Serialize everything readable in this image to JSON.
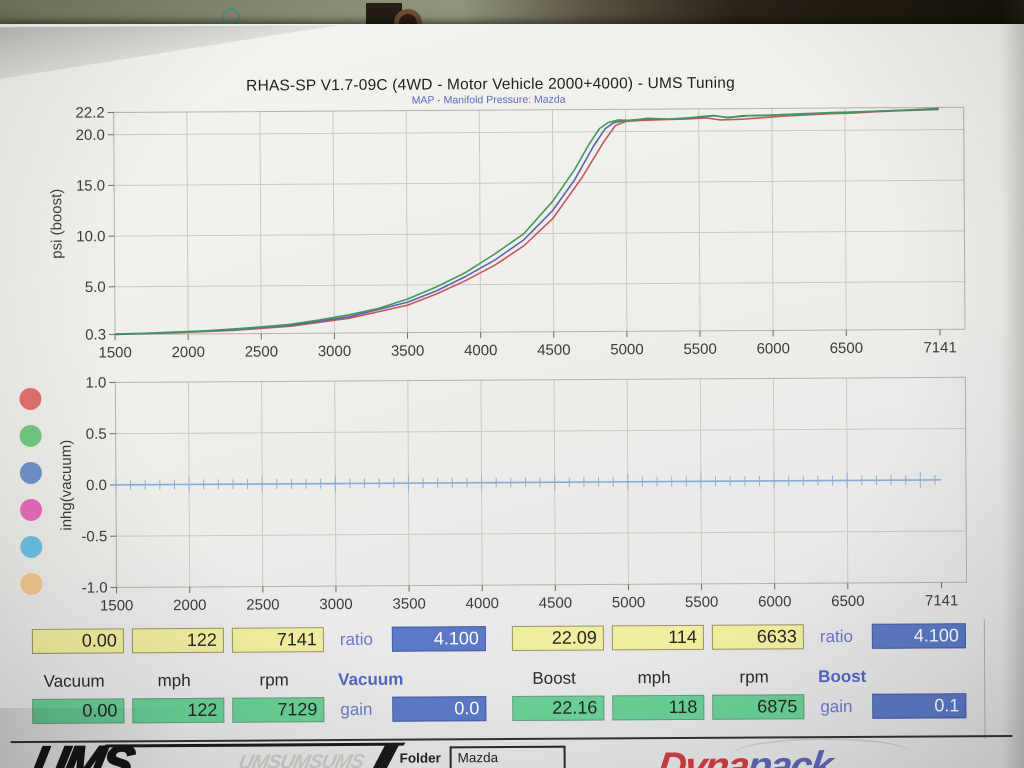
{
  "header": {
    "title": "RHAS-SP V1.7-09C (4WD - Motor Vehicle 2000+4000) - UMS Tuning",
    "subtitle": "MAP - Manifold Pressure: Mazda"
  },
  "colors": {
    "grid": "#c9c8c2",
    "border": "#b2b1ab",
    "tick_text": "#3c3c3a",
    "accent_blue": "#5565c0",
    "box_yellow": "#f1ee9f",
    "box_green": "#69d197",
    "box_blue": "#5b79c6",
    "dyna_red": "#ce3e44",
    "dyna_blue": "#5e66b2"
  },
  "legend_dots": [
    {
      "name": "red",
      "color": "#e2706d"
    },
    {
      "name": "green",
      "color": "#72ca82"
    },
    {
      "name": "blue",
      "color": "#6f93cb"
    },
    {
      "name": "pink",
      "color": "#e86cba"
    },
    {
      "name": "cyan",
      "color": "#6cc2e4"
    },
    {
      "name": "orange",
      "color": "#f3c98e"
    }
  ],
  "chart_data": [
    {
      "type": "line",
      "ylabel": "psi (boost)",
      "xlim": [
        1500,
        7312
      ],
      "ylim": [
        0.3,
        22.2
      ],
      "xticks": [
        {
          "v": 1500,
          "label": "1500"
        },
        {
          "v": 2000,
          "label": "2000"
        },
        {
          "v": 2500,
          "label": "2500"
        },
        {
          "v": 3000,
          "label": "3000"
        },
        {
          "v": 3500,
          "label": "3500"
        },
        {
          "v": 4000,
          "label": "4000"
        },
        {
          "v": 4500,
          "label": "4500"
        },
        {
          "v": 5000,
          "label": "5000"
        },
        {
          "v": 5500,
          "label": "5500"
        },
        {
          "v": 6000,
          "label": "6000"
        },
        {
          "v": 6500,
          "label": "6500"
        },
        {
          "v": 7141,
          "label": "7141"
        }
      ],
      "yticks": [
        {
          "v": 22.2,
          "label": "22.2"
        },
        {
          "v": 20,
          "label": "20.0"
        },
        {
          "v": 15,
          "label": "15.0"
        },
        {
          "v": 10,
          "label": "10.0"
        },
        {
          "v": 5,
          "label": "5.0"
        },
        {
          "v": 0.3,
          "label": "0.3"
        }
      ],
      "grid_xticks": [
        2000,
        2500,
        3000,
        3500,
        4000,
        4500,
        5000,
        5500,
        6000,
        6500
      ],
      "grid_yticks": [
        20,
        15,
        10,
        5
      ],
      "grid": true,
      "series": [
        {
          "name": "run-red",
          "color": "#c4595c",
          "points": [
            [
              1500,
              0.3
            ],
            [
              1900,
              0.42
            ],
            [
              2300,
              0.62
            ],
            [
              2700,
              1.0
            ],
            [
              3100,
              1.75
            ],
            [
              3500,
              3.0
            ],
            [
              3700,
              4.1
            ],
            [
              3900,
              5.4
            ],
            [
              4100,
              6.9
            ],
            [
              4300,
              8.8
            ],
            [
              4500,
              11.5
            ],
            [
              4700,
              15.5
            ],
            [
              4850,
              19.0
            ],
            [
              4930,
              20.6
            ],
            [
              5000,
              21.0
            ],
            [
              5100,
              21.1
            ],
            [
              5250,
              21.15
            ],
            [
              5400,
              21.2
            ],
            [
              5550,
              21.3
            ],
            [
              5650,
              21.1
            ],
            [
              5800,
              21.15
            ],
            [
              5950,
              21.3
            ],
            [
              6100,
              21.45
            ],
            [
              6250,
              21.55
            ],
            [
              6400,
              21.65
            ],
            [
              6550,
              21.7
            ],
            [
              6700,
              21.8
            ],
            [
              6900,
              21.9
            ],
            [
              7050,
              21.95
            ],
            [
              7141,
              22.0
            ]
          ]
        },
        {
          "name": "run-blue",
          "color": "#5a66b4",
          "points": [
            [
              1500,
              0.3
            ],
            [
              1900,
              0.45
            ],
            [
              2300,
              0.68
            ],
            [
              2700,
              1.1
            ],
            [
              3100,
              1.9
            ],
            [
              3500,
              3.3
            ],
            [
              3700,
              4.4
            ],
            [
              3900,
              5.8
            ],
            [
              4100,
              7.4
            ],
            [
              4300,
              9.4
            ],
            [
              4500,
              12.3
            ],
            [
              4650,
              15.3
            ],
            [
              4780,
              18.6
            ],
            [
              4860,
              20.3
            ],
            [
              4920,
              20.9
            ],
            [
              5000,
              21.1
            ],
            [
              5150,
              21.25
            ],
            [
              5300,
              21.2
            ],
            [
              5450,
              21.3
            ],
            [
              5600,
              21.5
            ],
            [
              5700,
              21.35
            ],
            [
              5850,
              21.5
            ],
            [
              6000,
              21.55
            ],
            [
              6200,
              21.65
            ],
            [
              6400,
              21.75
            ],
            [
              6600,
              21.8
            ],
            [
              6800,
              21.9
            ],
            [
              7000,
              22.0
            ],
            [
              7141,
              22.1
            ]
          ]
        },
        {
          "name": "run-green",
          "color": "#419a58",
          "points": [
            [
              1500,
              0.35
            ],
            [
              1700,
              0.4
            ],
            [
              1900,
              0.5
            ],
            [
              2100,
              0.6
            ],
            [
              2300,
              0.75
            ],
            [
              2500,
              0.95
            ],
            [
              2700,
              1.2
            ],
            [
              2900,
              1.6
            ],
            [
              3100,
              2.1
            ],
            [
              3300,
              2.7
            ],
            [
              3500,
              3.6
            ],
            [
              3700,
              4.8
            ],
            [
              3900,
              6.2
            ],
            [
              4100,
              8.0
            ],
            [
              4300,
              10.0
            ],
            [
              4500,
              13.2
            ],
            [
              4650,
              16.3
            ],
            [
              4750,
              18.8
            ],
            [
              4820,
              20.3
            ],
            [
              4880,
              20.9
            ],
            [
              4950,
              21.15
            ],
            [
              5050,
              21.1
            ],
            [
              5150,
              21.3
            ],
            [
              5300,
              21.2
            ],
            [
              5450,
              21.35
            ],
            [
              5600,
              21.55
            ],
            [
              5700,
              21.3
            ],
            [
              5800,
              21.5
            ],
            [
              5950,
              21.5
            ],
            [
              6100,
              21.6
            ],
            [
              6250,
              21.6
            ],
            [
              6400,
              21.75
            ],
            [
              6550,
              21.8
            ],
            [
              6700,
              21.85
            ],
            [
              6850,
              21.9
            ],
            [
              7000,
              22.0
            ],
            [
              7141,
              22.0
            ]
          ]
        }
      ]
    },
    {
      "type": "line",
      "ylabel": "inhg(vacuum)",
      "xlim": [
        1500,
        7312
      ],
      "ylim": [
        -1.0,
        1.0
      ],
      "xticks": [
        {
          "v": 1500,
          "label": "1500"
        },
        {
          "v": 2000,
          "label": "2000"
        },
        {
          "v": 2500,
          "label": "2500"
        },
        {
          "v": 3000,
          "label": "3000"
        },
        {
          "v": 3500,
          "label": "3500"
        },
        {
          "v": 4000,
          "label": "4000"
        },
        {
          "v": 4500,
          "label": "4500"
        },
        {
          "v": 5000,
          "label": "5000"
        },
        {
          "v": 5500,
          "label": "5500"
        },
        {
          "v": 6000,
          "label": "6000"
        },
        {
          "v": 6500,
          "label": "6500"
        },
        {
          "v": 7141,
          "label": "7141"
        }
      ],
      "yticks": [
        {
          "v": 1.0,
          "label": "1.0"
        },
        {
          "v": 0.5,
          "label": "0.5"
        },
        {
          "v": 0.0,
          "label": "0.0"
        },
        {
          "v": -0.5,
          "label": "-0.5"
        },
        {
          "v": -1.0,
          "label": "-1.0"
        }
      ],
      "grid_xticks": [
        2000,
        2500,
        3000,
        3500,
        4000,
        4500,
        5000,
        5500,
        6000,
        6500
      ],
      "grid_yticks": [
        0.5,
        -0.5
      ],
      "grid": true,
      "sample_ticks": {
        "start": 1500,
        "end": 7141,
        "step": 100,
        "tall_every": 500,
        "color": "#8fb2d8"
      },
      "series": [
        {
          "name": "vacuum-flat",
          "color": "#85acd6",
          "points": [
            [
              1500,
              0.0
            ],
            [
              7141,
              0.0
            ]
          ]
        }
      ]
    }
  ],
  "panel": {
    "blocks": [
      {
        "id": "vacuum",
        "peak": [
          "0.00",
          "122",
          "7141"
        ],
        "ratio_label": "ratio",
        "ratio_value": "4.100",
        "col_labels": [
          "Vacuum",
          "mph",
          "rpm"
        ],
        "channel_label": "Vacuum",
        "current": [
          "0.00",
          "122",
          "7129"
        ],
        "gain_label": "gain",
        "gain_value": "0.0"
      },
      {
        "id": "boost",
        "peak": [
          "22.09",
          "114",
          "6633"
        ],
        "ratio_label": "ratio",
        "ratio_value": "4.100",
        "col_labels": [
          "Boost",
          "mph",
          "rpm"
        ],
        "channel_label": "Boost",
        "current": [
          "22.16",
          "118",
          "6875"
        ],
        "gain_label": "gain",
        "gain_value": "0.1"
      }
    ]
  },
  "footer": {
    "ums_text": "UMS",
    "ums_watermark": "UMSUMSUMS",
    "folder_label": "Folder",
    "folder_value": "Mazda",
    "dyna_red_text": "Dyna",
    "dyna_blue_text": "pack"
  }
}
